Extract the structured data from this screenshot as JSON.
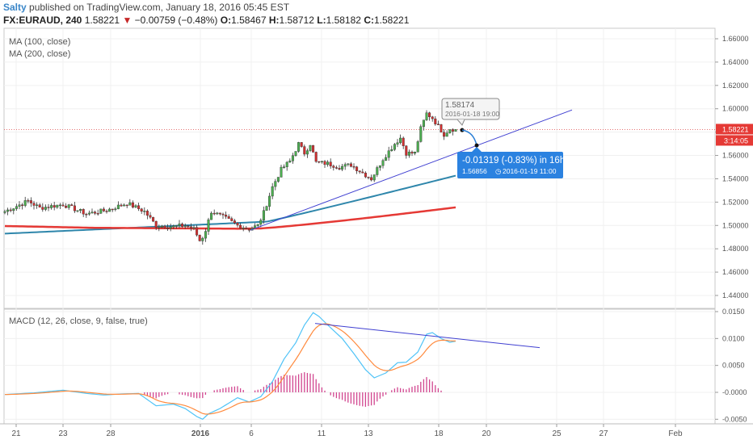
{
  "header": {
    "author": "Salty",
    "published": "published on TradingView.com, January 18, 2016 05:45 EST",
    "symbol": "FX:EURAUD, 240",
    "last": "1.58221",
    "arrow": "▼",
    "change": "−0.00759 (−0.48%)",
    "open_key": "O:",
    "open": "1.58467",
    "high_key": "H:",
    "high": "1.58712",
    "low_key": "L:",
    "low": "1.58182",
    "close_key": "C:",
    "close": "1.58221"
  },
  "indicators": {
    "ma100": "MA (100, close)",
    "ma200": "MA (200, close)",
    "macd": "MACD (12, 26, close, 9, false, true)"
  },
  "price_axis": {
    "ticks": [
      "1.66000",
      "1.64000",
      "1.62000",
      "1.60000",
      "1.58000",
      "1.56000",
      "1.54000",
      "1.52000",
      "1.50000",
      "1.48000",
      "1.46000",
      "1.44000"
    ],
    "current_price": "1.58221",
    "countdown": "3:14:05"
  },
  "macd_axis": {
    "ticks": [
      "0.0150",
      "0.0100",
      "0.0050",
      "-0.0000",
      "-0.0050"
    ]
  },
  "time_axis": {
    "labels": [
      "21",
      "23",
      "28",
      "2016",
      "6",
      "11",
      "13",
      "18",
      "20",
      "25",
      "27",
      "Feb"
    ]
  },
  "annotations": {
    "point_price": "1.58174",
    "point_time": "2016-01-18 19:00",
    "projection_change": "-0.01319 (-0.83%) in 16h",
    "projection_price": "1.56856",
    "projection_time": "2016-01-19  11:00"
  },
  "colors": {
    "up": "#4caf50",
    "down": "#d32f2f",
    "ma100": "#2e86ab",
    "ma200": "#e53935",
    "macd": "#4fc3f7",
    "signal": "#ff8a3d",
    "hist": "#d1458f",
    "trend": "#3f3fd1"
  },
  "chart_data": {
    "type": "candlestick",
    "symbol": "FX:EURAUD",
    "ylim": [
      1.43,
      1.665
    ],
    "ohlc": [],
    "ma100": [],
    "ma200": [],
    "macd_ylim": [
      -0.0055,
      0.0158
    ]
  }
}
